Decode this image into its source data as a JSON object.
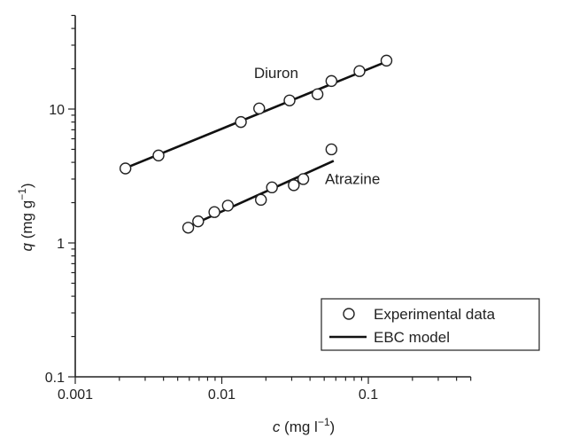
{
  "chart_data": {
    "type": "scatter",
    "xscale": "log",
    "yscale": "log",
    "xlim": [
      0.001,
      0.5
    ],
    "ylim": [
      0.1,
      50
    ],
    "x_ticks": [
      {
        "value": 0.001,
        "label": "0.001"
      },
      {
        "value": 0.01,
        "label": "0.01"
      },
      {
        "value": 0.1,
        "label": "0.1"
      }
    ],
    "y_ticks": [
      {
        "value": 0.1,
        "label": "0.1"
      },
      {
        "value": 1,
        "label": "1"
      },
      {
        "value": 10,
        "label": "10"
      }
    ],
    "xlabel": {
      "var": "c",
      "text": " (mg l",
      "sup": "−1",
      "close": ")"
    },
    "ylabel": {
      "var": "q",
      "text": " (mg g",
      "sup": "−1",
      "close": ")"
    },
    "series": [
      {
        "name": "Diuron",
        "points": [
          [
            0.0022,
            3.6
          ],
          [
            0.0037,
            4.5
          ],
          [
            0.0135,
            8.0
          ],
          [
            0.018,
            10.1
          ],
          [
            0.029,
            11.6
          ],
          [
            0.045,
            12.9
          ],
          [
            0.056,
            16.2
          ],
          [
            0.087,
            19.2
          ],
          [
            0.133,
            23.0
          ]
        ],
        "model": [
          [
            0.0021,
            3.55
          ],
          [
            0.133,
            22.6
          ]
        ]
      },
      {
        "name": "Atrazine",
        "points": [
          [
            0.0059,
            1.3
          ],
          [
            0.0069,
            1.45
          ],
          [
            0.0089,
            1.7
          ],
          [
            0.011,
            1.9
          ],
          [
            0.0185,
            2.1
          ],
          [
            0.022,
            2.6
          ],
          [
            0.031,
            2.7
          ],
          [
            0.036,
            3.0
          ],
          [
            0.056,
            5.0
          ]
        ],
        "model": [
          [
            0.0057,
            1.3
          ],
          [
            0.058,
            4.1
          ]
        ]
      }
    ],
    "annotations": [
      {
        "text": "Diuron",
        "x": 0.0235,
        "y": 17.0
      },
      {
        "text": "Atrazine",
        "x": 0.078,
        "y": 2.75
      }
    ],
    "legend": {
      "position": "bottom-right",
      "entries": [
        {
          "marker": "circle",
          "label": "Experimental data"
        },
        {
          "marker": "line",
          "label": "EBC model"
        }
      ]
    }
  }
}
